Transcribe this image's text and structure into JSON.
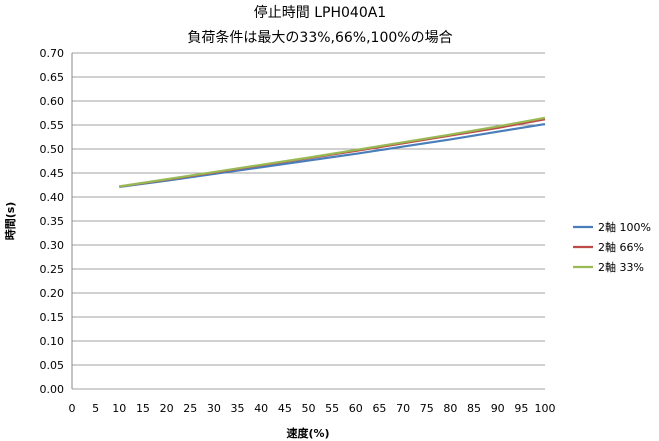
{
  "chart_data": {
    "type": "line",
    "title": "停止時間 LPH040A1",
    "subtitle": "負荷条件は最大の33%,66%,100%の場合",
    "xlabel": "速度(%)",
    "ylabel": "時間(s)",
    "xlim": [
      0,
      100
    ],
    "ylim": [
      0,
      0.7
    ],
    "xticks": [
      "0",
      "5",
      "10",
      "15",
      "20",
      "25",
      "30",
      "35",
      "40",
      "45",
      "50",
      "55",
      "60",
      "65",
      "70",
      "75",
      "80",
      "85",
      "90",
      "95",
      "100"
    ],
    "yticks": [
      "0.00",
      "0.05",
      "0.10",
      "0.15",
      "0.20",
      "0.25",
      "0.30",
      "0.35",
      "0.40",
      "0.45",
      "0.50",
      "0.55",
      "0.60",
      "0.65",
      "0.70"
    ],
    "grid": true,
    "legend": "right",
    "x": [
      10,
      20,
      30,
      40,
      50,
      60,
      70,
      80,
      90,
      100
    ],
    "series": [
      {
        "name": "2軸  100%",
        "color": "#4a7ebb",
        "values": [
          0.421,
          0.434,
          0.448,
          0.462,
          0.476,
          0.49,
          0.505,
          0.52,
          0.536,
          0.552
        ]
      },
      {
        "name": "2軸  66%",
        "color": "#be4b48",
        "values": [
          0.422,
          0.436,
          0.451,
          0.466,
          0.481,
          0.496,
          0.512,
          0.528,
          0.544,
          0.562
        ]
      },
      {
        "name": "2軸  33%",
        "color": "#98b954",
        "values": [
          0.422,
          0.437,
          0.452,
          0.467,
          0.482,
          0.498,
          0.514,
          0.53,
          0.547,
          0.565
        ]
      }
    ]
  }
}
